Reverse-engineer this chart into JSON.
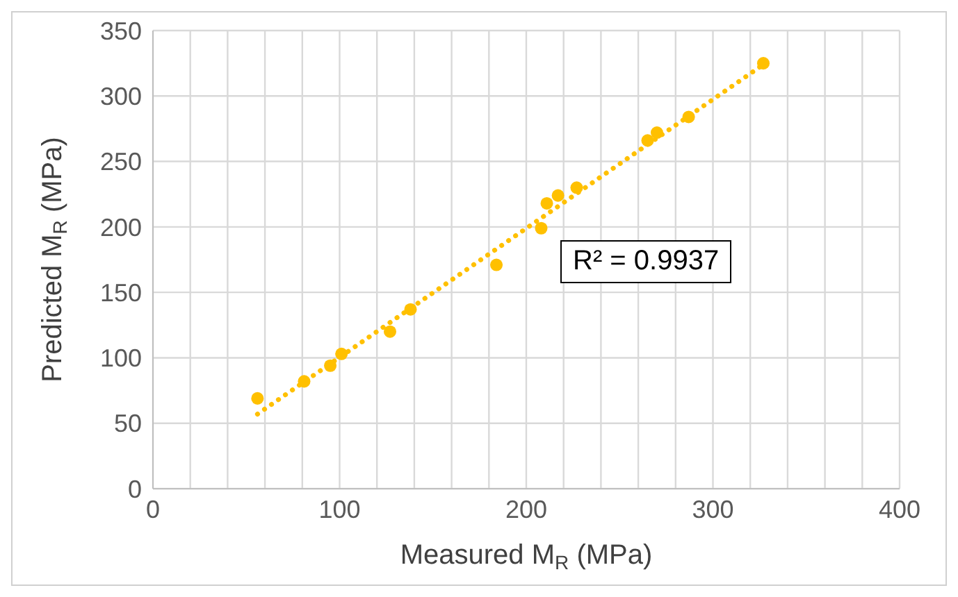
{
  "chart_data": {
    "type": "scatter",
    "xlabel": "Measured M$_{R}$ (MPa)",
    "ylabel": "Predicted M$_{R}$ (MPa)",
    "xlim": [
      0,
      400
    ],
    "ylim": [
      0,
      350
    ],
    "xticks": [
      0,
      {
        "value": 20,
        "label": null
      },
      {
        "value": 40,
        "label": null
      },
      {
        "value": 60,
        "label": null
      },
      {
        "value": 80,
        "label": null
      },
      100,
      {
        "value": 120,
        "label": null
      },
      {
        "value": 140,
        "label": null
      },
      {
        "value": 160,
        "label": null
      },
      {
        "value": 180,
        "label": null
      },
      200,
      {
        "value": 220,
        "label": null
      },
      {
        "value": 240,
        "label": null
      },
      {
        "value": 260,
        "label": null
      },
      {
        "value": 280,
        "label": null
      },
      300,
      {
        "value": 320,
        "label": null
      },
      {
        "value": 340,
        "label": null
      },
      {
        "value": 360,
        "label": null
      },
      {
        "value": 380,
        "label": null
      },
      400
    ],
    "yticks": [
      0,
      50,
      100,
      150,
      200,
      250,
      300,
      350
    ],
    "grid": true,
    "marker": "circle",
    "series": [
      {
        "color": "#ffc000",
        "x": [
          56,
          81,
          95,
          101,
          127,
          138,
          184,
          208,
          211,
          217,
          227,
          265,
          270,
          287,
          327
        ],
        "values": [
          69,
          82,
          94,
          103,
          120,
          137,
          171,
          199,
          218,
          224,
          230,
          266,
          272,
          284,
          325
        ]
      },
      {
        "type": "line",
        "color": "#ffc000",
        "line_style": "dotted",
        "marker": "none",
        "x": [
          56,
          327
        ],
        "values": [
          57,
          324
        ]
      }
    ],
    "annotations": [
      "R² = 0.9937"
    ]
  }
}
